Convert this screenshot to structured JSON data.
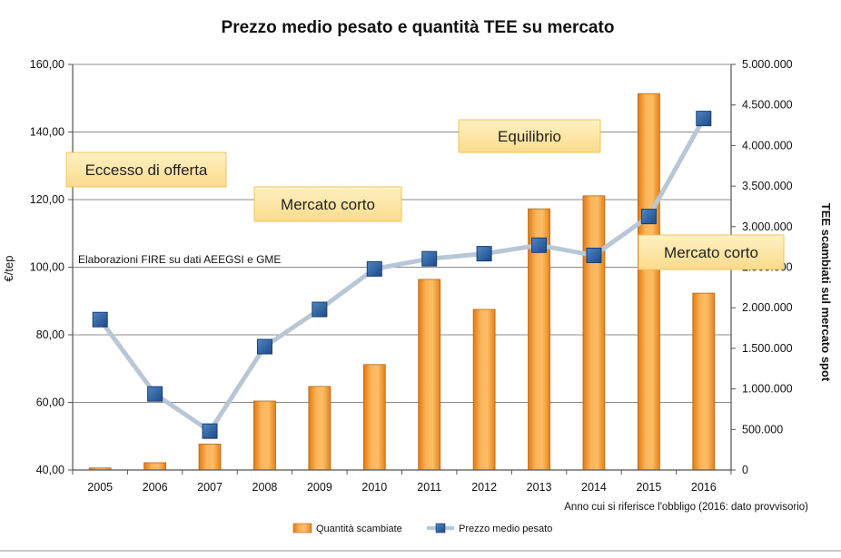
{
  "chart_data": {
    "type": "bar",
    "title": "Prezzo medio pesato e quantità TEE su mercato",
    "xlabel": "Anno cui si riferisce l'obbligo (2016: dato provvisorio)",
    "ylabel_left": "€/tep",
    "ylabel_right": "TEE scambiati sul mercato spot",
    "categories": [
      "2005",
      "2006",
      "2007",
      "2008",
      "2009",
      "2010",
      "2011",
      "2012",
      "2013",
      "2014",
      "2015",
      "2016"
    ],
    "left_axis": {
      "min": 40,
      "max": 160,
      "ticks": [
        40,
        60,
        80,
        100,
        120,
        140,
        160
      ],
      "tick_labels": [
        "40,00",
        "60,00",
        "80,00",
        "100,00",
        "120,00",
        "140,00",
        "160,00"
      ]
    },
    "right_axis": {
      "min": 0,
      "max": 5000000,
      "ticks": [
        0,
        500000,
        1000000,
        1500000,
        2000000,
        2500000,
        3000000,
        3500000,
        4000000,
        4500000,
        5000000
      ],
      "tick_labels": [
        "0",
        "500.000",
        "1.000.000",
        "1.500.000",
        "2.000.000",
        "2.500.000",
        "3.000.000",
        "3.500.000",
        "4.000.000",
        "4.500.000",
        "5.000.000"
      ]
    },
    "grid": true,
    "legend_position": "bottom",
    "series": [
      {
        "name": "Quantità scambiate",
        "type": "bar",
        "axis": "right",
        "color": "#f7a440",
        "values": [
          25000,
          90000,
          320000,
          850000,
          1030000,
          1300000,
          2350000,
          1980000,
          3220000,
          3380000,
          4640000,
          2180000
        ]
      },
      {
        "name": "Prezzo medio pesato",
        "type": "line",
        "axis": "left",
        "color": "#b8c7d6",
        "marker_color": "#2e5f9e",
        "values": [
          84.5,
          62.5,
          51.5,
          76.5,
          87.5,
          99.5,
          102.5,
          104.0,
          106.5,
          103.5,
          115.0,
          144.0
        ]
      }
    ],
    "annotations": [
      {
        "label": "Eccesso di offerta",
        "kind": "callout"
      },
      {
        "label": "Mercato corto",
        "kind": "callout"
      },
      {
        "label": "Equilibrio",
        "kind": "callout"
      },
      {
        "label": "Mercato corto",
        "kind": "callout"
      },
      {
        "label": "Elaborazioni FIRE su dati AEEGSI e GME",
        "kind": "note"
      }
    ]
  }
}
